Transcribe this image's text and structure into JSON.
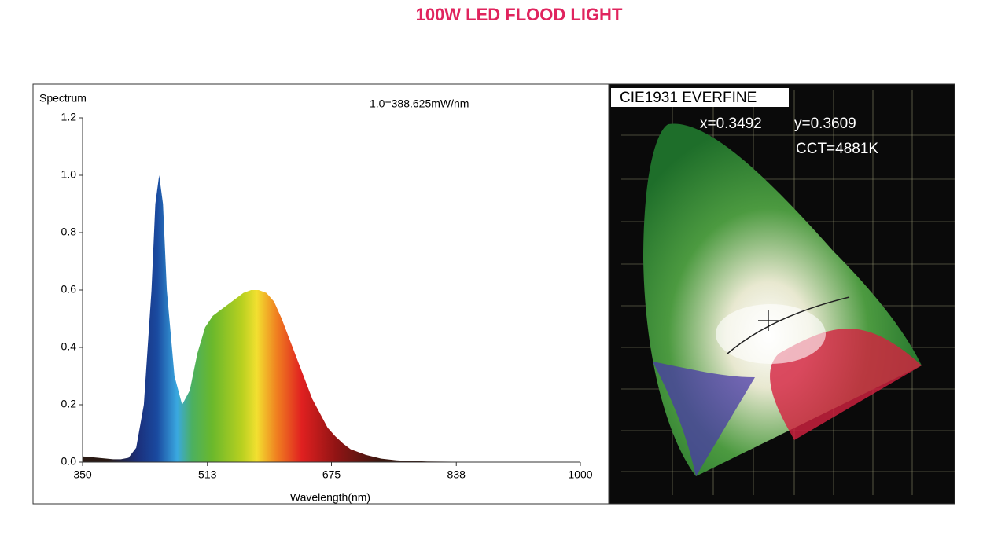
{
  "title": "100W LED FLOOD LIGHT",
  "chart_data": {
    "type": "area",
    "y_label": "Spectrum",
    "x_label": "Wavelength(nm)",
    "annotation": "1.0=388.625mW/nm",
    "x": [
      350,
      370,
      390,
      400,
      410,
      420,
      430,
      440,
      445,
      450,
      455,
      460,
      470,
      480,
      490,
      500,
      510,
      520,
      530,
      540,
      550,
      560,
      570,
      580,
      590,
      600,
      610,
      620,
      630,
      640,
      650,
      660,
      670,
      680,
      690,
      700,
      720,
      740,
      760,
      800,
      850,
      900,
      1000
    ],
    "values": [
      0.02,
      0.015,
      0.01,
      0.01,
      0.015,
      0.05,
      0.2,
      0.6,
      0.9,
      1.0,
      0.9,
      0.6,
      0.3,
      0.2,
      0.25,
      0.38,
      0.47,
      0.51,
      0.53,
      0.55,
      0.57,
      0.59,
      0.6,
      0.6,
      0.59,
      0.56,
      0.5,
      0.43,
      0.36,
      0.29,
      0.22,
      0.17,
      0.12,
      0.09,
      0.065,
      0.045,
      0.025,
      0.012,
      0.006,
      0.002,
      0.001,
      0,
      0
    ],
    "xlim": [
      350,
      1000
    ],
    "xticks": [
      350,
      513,
      675,
      838,
      1000
    ],
    "ylim": [
      0,
      1.2
    ],
    "yticks": [
      {
        "value": 0,
        "label": "0.0"
      },
      0.2,
      0.4,
      0.6,
      0.8,
      {
        "value": 1,
        "label": "1.0"
      },
      1.2
    ]
  },
  "cie": {
    "title": "CIE1931 EVERFINE",
    "x_text": "x=0.3492",
    "y_text": "y=0.3609",
    "cct": "CCT=4881K"
  }
}
